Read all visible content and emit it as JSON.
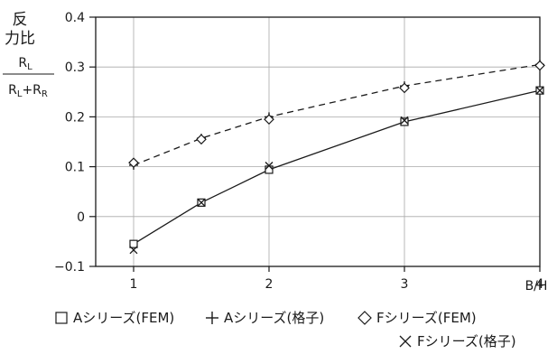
{
  "chart_data": {
    "type": "line",
    "ylabel_lines": [
      "反",
      "力比"
    ],
    "ylabel_numerator": "R",
    "ylabel_numerator_sub": "L",
    "ylabel_denominator_a": "R",
    "ylabel_denominator_a_sub": "L",
    "ylabel_denominator_plus": "+",
    "ylabel_denominator_b": "R",
    "ylabel_denominator_b_sub": "R",
    "xlabel": "B/H",
    "xlim": [
      0.72,
      4.0
    ],
    "ylim": [
      -0.1,
      0.4
    ],
    "xticks": [
      1,
      2,
      3,
      4
    ],
    "xtick_labels": [
      "1",
      "2",
      "3",
      "4"
    ],
    "yticks": [
      -0.1,
      0,
      0.1,
      0.2,
      0.3,
      0.4
    ],
    "ytick_labels": [
      "−0.1",
      "0",
      "0.1",
      "0.2",
      "0.3",
      "0.4"
    ],
    "grid": true,
    "series": [
      {
        "name": "Aシリーズ(FEM)",
        "marker": "square",
        "line": "solid",
        "x": [
          1,
          1.5,
          2,
          3,
          4
        ],
        "y": [
          -0.055,
          0.028,
          0.094,
          0.19,
          0.253
        ]
      },
      {
        "name": "Aシリーズ(格子)",
        "marker": "plus",
        "line": "dashed",
        "x": [
          1,
          1.5,
          2,
          3,
          4
        ],
        "y": [
          0.103,
          0.157,
          0.2,
          0.262,
          0.305
        ]
      },
      {
        "name": "Fシリーズ(FEM)",
        "marker": "diamond",
        "line": "dashed",
        "x": [
          1,
          1.5,
          2,
          3,
          4
        ],
        "y": [
          0.108,
          0.155,
          0.195,
          0.258,
          0.303
        ]
      },
      {
        "name": "Fシリーズ(格子)",
        "marker": "cross",
        "line": "solid",
        "x": [
          1,
          1.5,
          2,
          3,
          4
        ],
        "y": [
          -0.067,
          0.028,
          0.102,
          0.193,
          0.253
        ]
      }
    ],
    "legend_position": "bottom"
  }
}
